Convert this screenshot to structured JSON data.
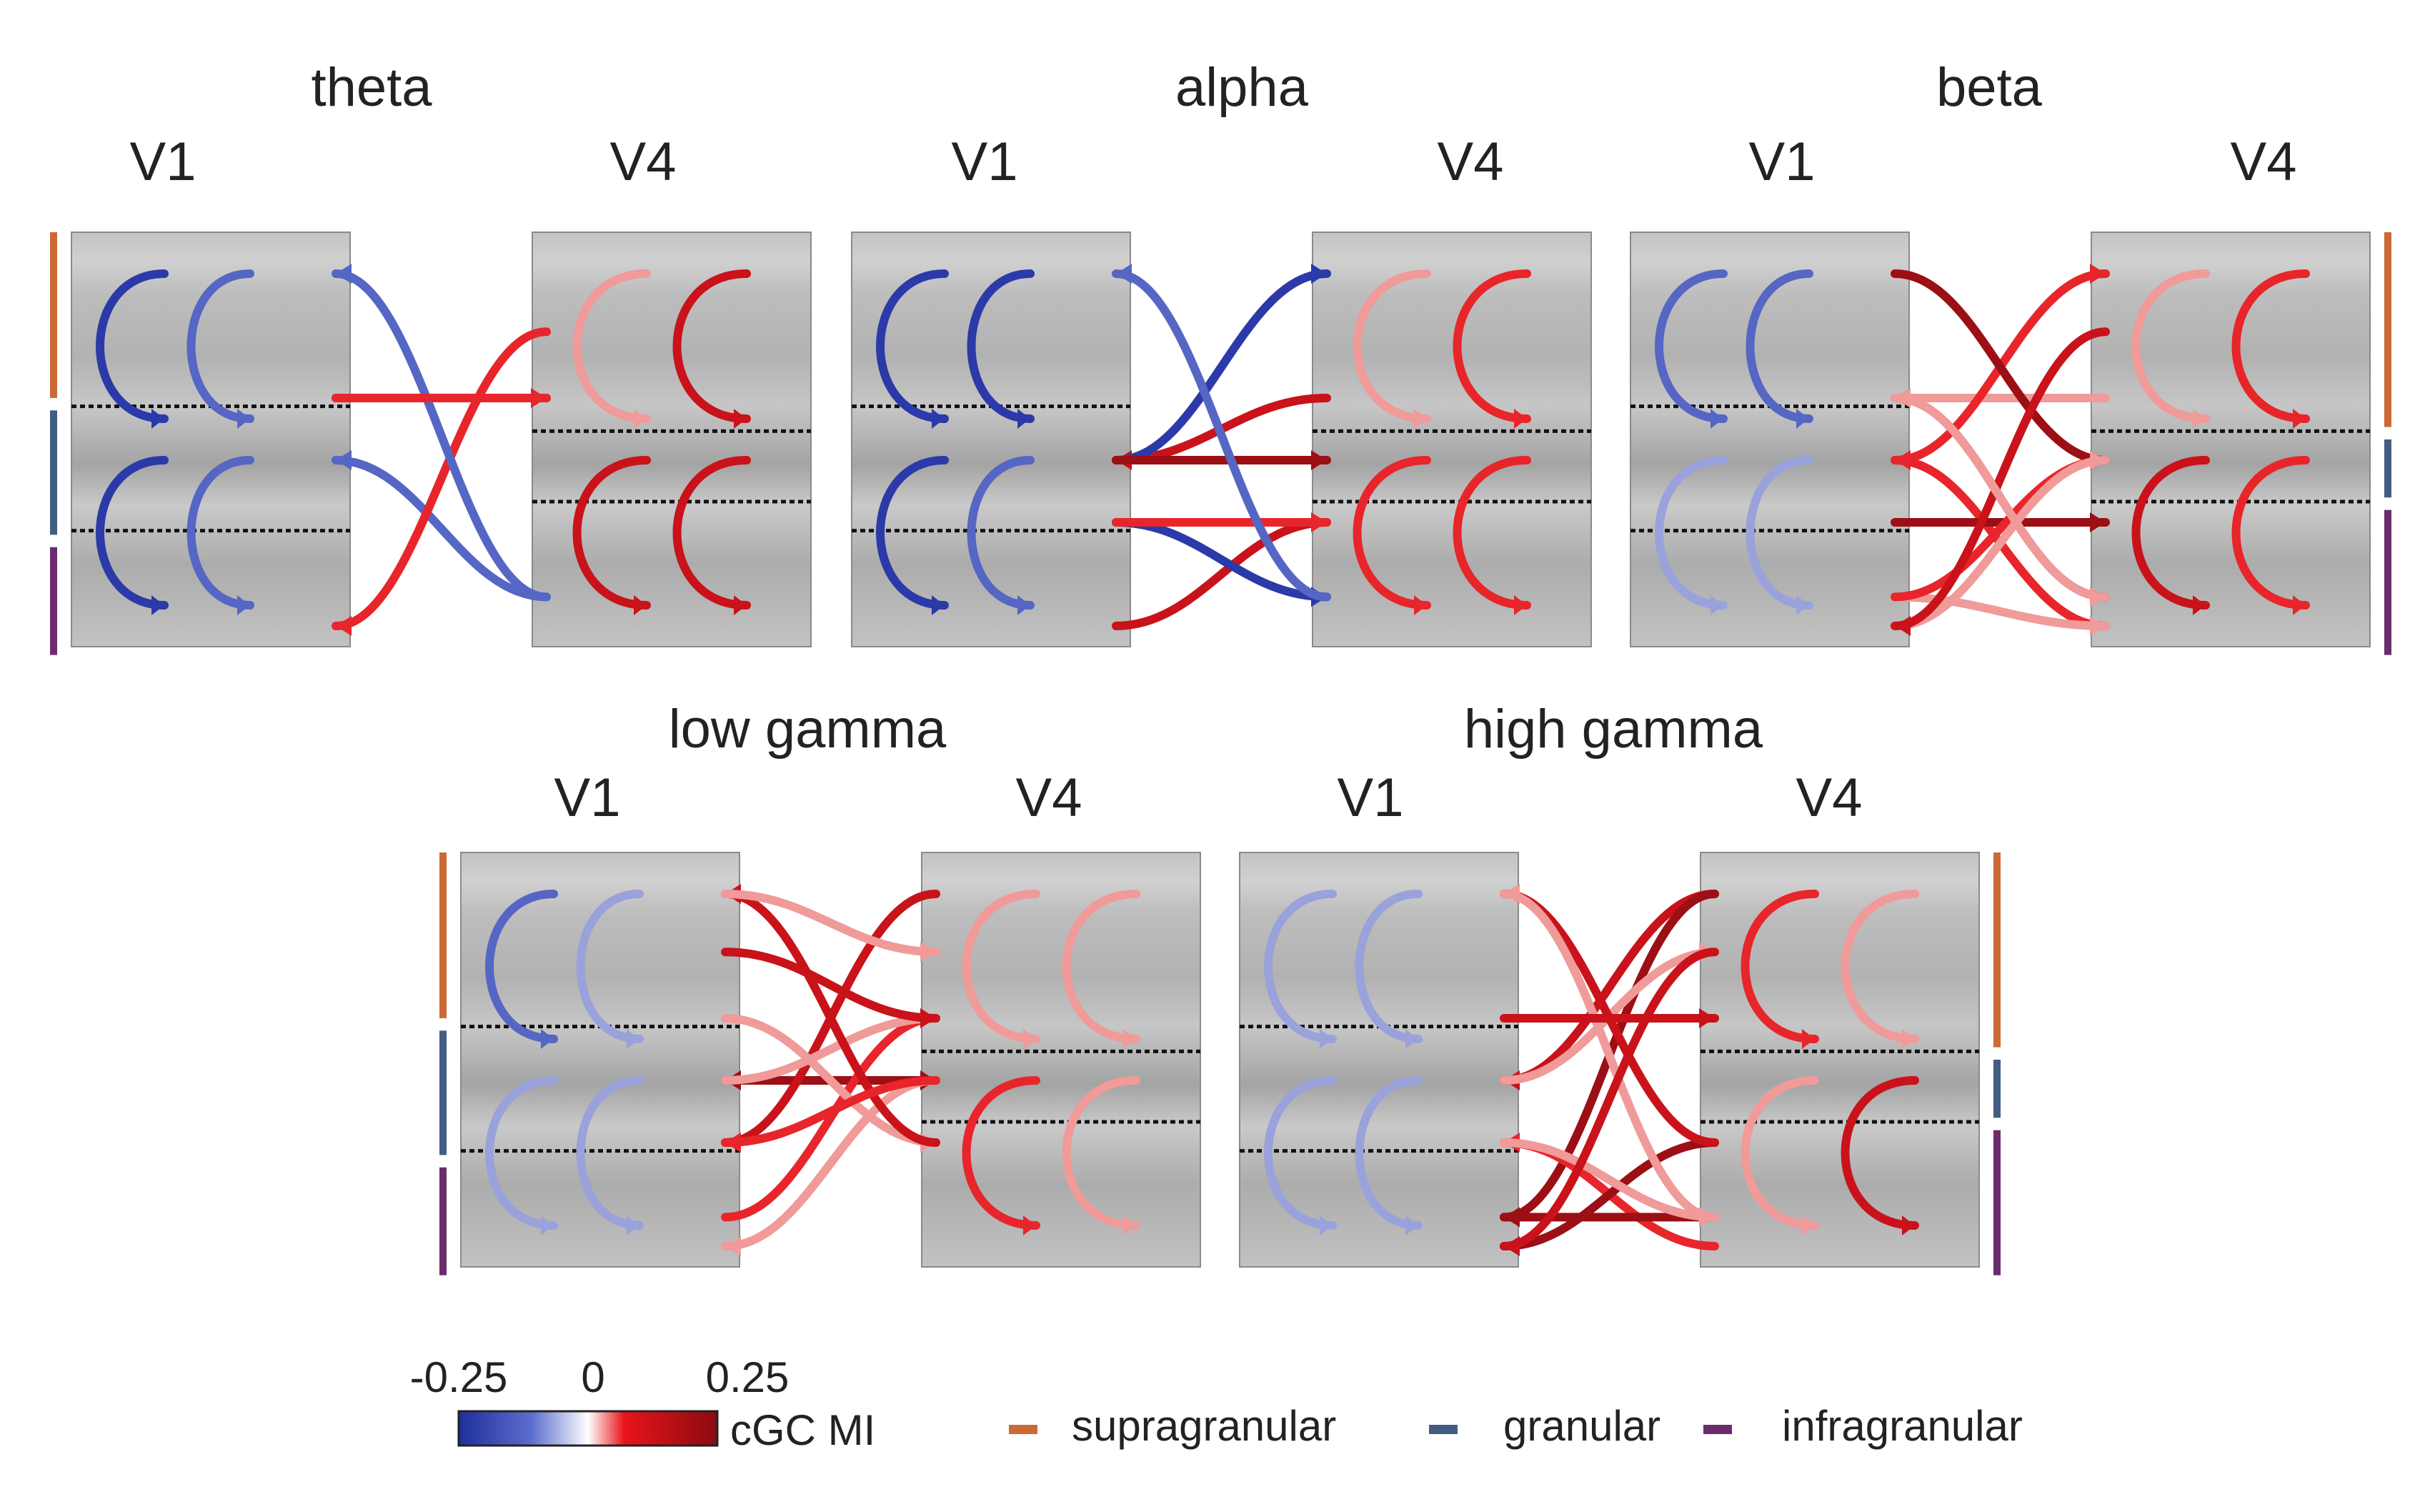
{
  "panels": [
    {
      "title": "theta",
      "left_area": "V1",
      "right_area": "V4"
    },
    {
      "title": "alpha",
      "left_area": "V1",
      "right_area": "V4"
    },
    {
      "title": "beta",
      "left_area": "V1",
      "right_area": "V4"
    },
    {
      "title": "low gamma",
      "left_area": "V1",
      "right_area": "V4"
    },
    {
      "title": "high gamma",
      "left_area": "V1",
      "right_area": "V4"
    }
  ],
  "colorbar": {
    "min_label": "-0.25",
    "mid_label": "0",
    "max_label": "0.25",
    "label": "cGC MI",
    "colors": [
      "#1f2f9c",
      "#ffffff",
      "#e8141b",
      "#8c0a10"
    ]
  },
  "layer_legend": [
    {
      "label": "supragranular",
      "color": "#cc6a35"
    },
    {
      "label": "granular",
      "color": "#435d82"
    },
    {
      "label": "infragranular",
      "color": "#6b2c6b"
    }
  ]
}
